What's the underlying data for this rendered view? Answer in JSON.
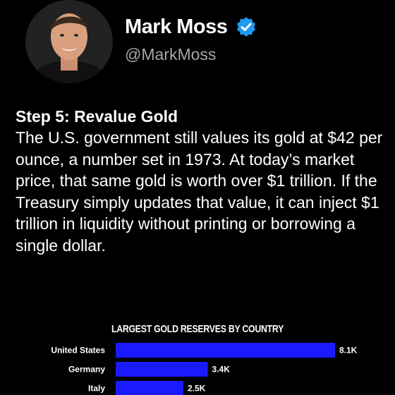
{
  "profile": {
    "display_name": "Mark Moss",
    "handle": "@MarkMoss",
    "verified": true,
    "verified_color": "#1d9bf0"
  },
  "post": {
    "heading": "Step 5: Revalue Gold",
    "body": "The U.S. government still values its gold at $42 per ounce, a number set in 1973. At today’s market price, that same gold is worth over $1 trillion. If the Treasury simply updates that value, it can inject $1 trillion in liquidity without printing or borrowing a single dollar."
  },
  "chart_data": {
    "type": "bar",
    "orientation": "horizontal",
    "title": "LARGEST GOLD RESERVES BY COUNTRY",
    "categories": [
      "United States",
      "Germany",
      "Italy"
    ],
    "values": [
      8.1,
      3.4,
      2.5
    ],
    "value_labels": [
      "8.1K",
      "3.4K",
      "2.5K"
    ],
    "bar_color": "#1a1aff",
    "xlim": [
      0,
      8.1
    ]
  }
}
